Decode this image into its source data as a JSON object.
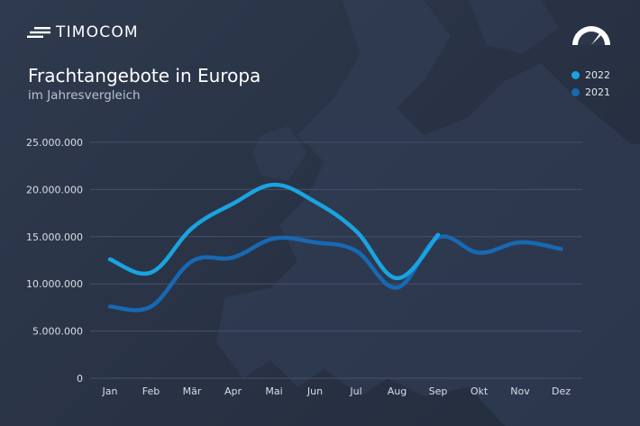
{
  "brand": {
    "name": "TIMOCOM",
    "logo_icon": "speed-lines-icon",
    "gauge_icon": "gauge-icon"
  },
  "colors": {
    "series_2022": "#1aa3e0",
    "series_2021": "#1769b3",
    "grid": "#46516a",
    "text": "#ffffff"
  },
  "chart_data": {
    "type": "line",
    "title": "Frachtangebote in Europa",
    "subtitle": "im Jahresvergleich",
    "xlabel": "",
    "ylabel": "",
    "categories": [
      "Jan",
      "Feb",
      "Mär",
      "Apr",
      "Mai",
      "Jun",
      "Jul",
      "Aug",
      "Sep",
      "Okt",
      "Nov",
      "Dez"
    ],
    "y_ticks": [
      {
        "value": 0,
        "label": "0"
      },
      {
        "value": 5000000,
        "label": "5.000.000"
      },
      {
        "value": 10000000,
        "label": "10.000.000"
      },
      {
        "value": 15000000,
        "label": "15.000.000"
      },
      {
        "value": 20000000,
        "label": "20.000.000"
      },
      {
        "value": 25000000,
        "label": "25.000.000"
      }
    ],
    "ylim": [
      0,
      25000000
    ],
    "grid": true,
    "legend_position": "top-right",
    "series": [
      {
        "name": "2022",
        "color": "#1aa3e0",
        "values": [
          12600000,
          11200000,
          15900000,
          18500000,
          20500000,
          18700000,
          15600000,
          10600000,
          15200000,
          null,
          null,
          null
        ]
      },
      {
        "name": "2021",
        "color": "#1769b3",
        "values": [
          7600000,
          7600000,
          12400000,
          12800000,
          14800000,
          14400000,
          13500000,
          9600000,
          14900000,
          13300000,
          14400000,
          13700000
        ]
      }
    ]
  }
}
